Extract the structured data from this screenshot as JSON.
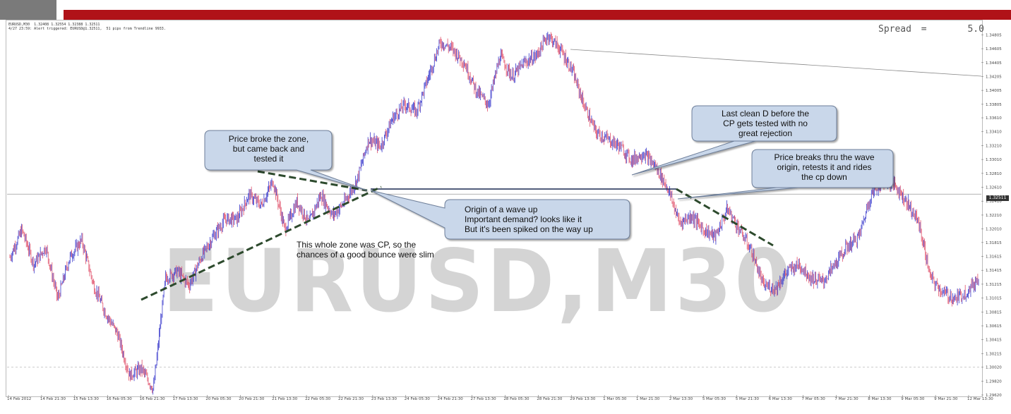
{
  "header": {
    "info_line1": "EURUSD,M30  1.32408 1.32554 1.32388 1.32511",
    "info_line2": "4/27 23:59: Alert triggered: EURUSD@1.32511,  51 pips from Trendline 9933.",
    "spread_label": "Spread",
    "spread_eq": "=",
    "spread_value": "5.0"
  },
  "watermark": "EURUSD,M30",
  "annotations": {
    "zone_callout": "Price broke the zone,\nbut came back and\ntested it",
    "cleanD_callout": "Last clean D before the\nCP gets tested with no\ngreat rejection",
    "breaks_callout": "Price breaks thru the wave\norigin, retests it and rides\nthe cp down",
    "origin_callout": "Origin of a wave up\nImportant demand? looks like it\nBut it's been spiked on the way up",
    "zone_note": "This whole zone was CP, so the\nchances of a good bounce were slim"
  },
  "current_price": "1.32511",
  "colors": {
    "up": "#3a3acc",
    "down": "#e0506a",
    "topbar_red": "#b01218",
    "callout": "#c9d7ea"
  },
  "chart_data": {
    "type": "candlestick",
    "symbol": "EURUSD",
    "timeframe": "M30",
    "ylim": [
      1.2962,
      1.349
    ],
    "y_ticks": [
      "1.34805",
      "1.34605",
      "1.34405",
      "1.34205",
      "1.34005",
      "1.33805",
      "1.33610",
      "1.33410",
      "1.33210",
      "1.33010",
      "1.32810",
      "1.32610",
      "1.32410",
      "1.32210",
      "1.32010",
      "1.31815",
      "1.31615",
      "1.31415",
      "1.31215",
      "1.31015",
      "1.30815",
      "1.30615",
      "1.30415",
      "1.30215",
      "1.30020",
      "1.29820",
      "1.29620"
    ],
    "x_ticks": [
      "14 Feb 2012",
      "14 Feb 21:30",
      "15 Feb 13:30",
      "16 Feb 05:30",
      "16 Feb 21:30",
      "17 Feb 13:30",
      "20 Feb 05:30",
      "20 Feb 21:30",
      "21 Feb 13:30",
      "22 Feb 05:30",
      "22 Feb 21:30",
      "23 Feb 13:30",
      "24 Feb 05:30",
      "24 Feb 21:30",
      "27 Feb 13:30",
      "28 Feb 05:30",
      "28 Feb 21:30",
      "29 Feb 13:30",
      "1 Mar 05:30",
      "1 Mar 21:30",
      "2 Mar 13:30",
      "5 Mar 05:30",
      "5 Mar 21:30",
      "6 Mar 13:30",
      "7 Mar 05:30",
      "7 Mar 21:30",
      "8 Mar 13:30",
      "9 Mar 05:30",
      "9 Mar 21:30",
      "12 Mar 13:30"
    ],
    "price_path": [
      1.316,
      1.32,
      1.315,
      1.3175,
      1.31,
      1.316,
      1.3185,
      1.312,
      1.308,
      1.305,
      1.299,
      1.3,
      1.297,
      1.313,
      1.314,
      1.312,
      1.316,
      1.319,
      1.3215,
      1.3215,
      1.325,
      1.3235,
      1.327,
      1.32,
      1.324,
      1.321,
      1.325,
      1.322,
      1.324,
      1.327,
      1.333,
      1.332,
      1.336,
      1.338,
      1.337,
      1.342,
      1.347,
      1.346,
      1.344,
      1.34,
      1.338,
      1.345,
      1.342,
      1.344,
      1.345,
      1.348,
      1.346,
      1.343,
      1.338,
      1.334,
      1.333,
      1.332,
      1.33,
      1.331,
      1.329,
      1.326,
      1.321,
      1.322,
      1.32,
      1.319,
      1.323,
      1.32,
      1.317,
      1.312,
      1.3115,
      1.314,
      1.315,
      1.313,
      1.3125,
      1.315,
      1.3175,
      1.319,
      1.325,
      1.327,
      1.3265,
      1.324,
      1.321,
      1.313,
      1.311,
      1.31,
      1.311,
      1.313
    ],
    "lines": {
      "support_level": 1.32664,
      "current_level": 1.32511,
      "lower_level": 1.3002
    }
  }
}
